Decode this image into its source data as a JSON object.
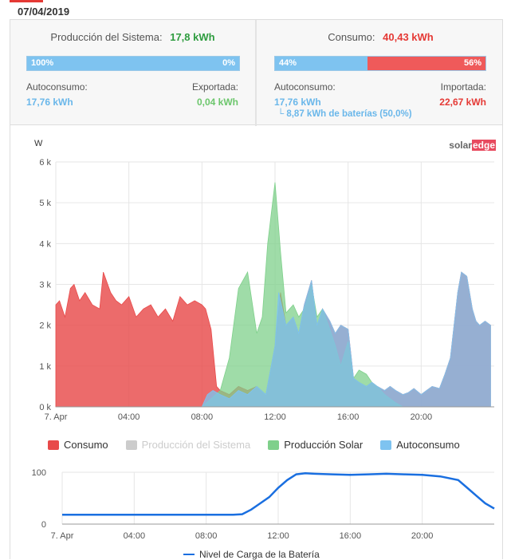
{
  "date": "07/04/2019",
  "production": {
    "label": "Producción del Sistema:",
    "value": "17,8 kWh",
    "bar_left_pct": "100%",
    "bar_right_pct": "0%",
    "self_label": "Autoconsumo:",
    "self_value": "17,76 kWh",
    "export_label": "Exportada:",
    "export_value": "0,04 kWh"
  },
  "consumption": {
    "label": "Consumo:",
    "value": "40,43 kWh",
    "bar_left_pct": "44%",
    "bar_right_pct": "56%",
    "self_label": "Autoconsumo:",
    "self_value": "17,76 kWh",
    "battery_note": "└ 8,87 kWh de baterías (50,0%)",
    "import_label": "Importada:",
    "import_value": "22,67 kWh"
  },
  "logo": {
    "part1": "solar",
    "part2": "edge"
  },
  "colors": {
    "consumo": "#e84a4a",
    "solar": "#7fd08b",
    "auto": "#7ec3f0",
    "battery": "#1a6fe0"
  },
  "chart_data": [
    {
      "type": "area",
      "ylabel": "W",
      "ylim": [
        0,
        6000
      ],
      "yticks": [
        "0 k",
        "1 k",
        "2 k",
        "3 k",
        "4 k",
        "5 k",
        "6 k"
      ],
      "xticks": [
        "7. Apr",
        "04:00",
        "08:00",
        "12:00",
        "16:00",
        "20:00"
      ],
      "xrange_hours": [
        0,
        24
      ],
      "legend": [
        {
          "name": "Consumo",
          "color": "#e84a4a"
        },
        {
          "name": "Producción del Sistema",
          "color": "#cccccc"
        },
        {
          "name": "Producción Solar",
          "color": "#7fd08b"
        },
        {
          "name": "Autoconsumo",
          "color": "#7ec3f0"
        }
      ],
      "series": [
        {
          "name": "Consumo",
          "x": [
            0,
            0.2,
            0.5,
            0.8,
            1,
            1.3,
            1.6,
            2,
            2.4,
            2.6,
            3,
            3.3,
            3.6,
            4,
            4.4,
            4.8,
            5.2,
            5.6,
            6,
            6.4,
            6.8,
            7.2,
            7.6,
            8,
            8.2,
            8.5,
            8.8,
            9,
            9.5,
            10,
            10.5,
            11,
            11.5,
            12,
            12.3,
            12.6,
            13,
            13.3,
            13.6,
            14,
            14.3,
            14.6,
            15,
            15.3,
            15.6,
            16,
            16.3,
            16.6,
            17,
            17.3,
            17.6,
            18,
            18.3,
            18.6,
            19,
            19.3,
            19.6,
            20,
            20.3,
            20.6,
            21,
            21.3,
            21.6,
            22,
            22.2,
            22.5,
            22.8,
            23,
            23.2,
            23.5,
            23.8
          ],
          "values": [
            2500,
            2600,
            2200,
            2900,
            3000,
            2600,
            2800,
            2500,
            2400,
            3300,
            2800,
            2600,
            2500,
            2700,
            2200,
            2400,
            2500,
            2200,
            2400,
            2100,
            2700,
            2500,
            2600,
            2500,
            2400,
            1900,
            500,
            400,
            300,
            500,
            400,
            500,
            300,
            1500,
            2800,
            2000,
            2200,
            1800,
            2500,
            3100,
            2000,
            2400,
            2100,
            1800,
            2000,
            1900,
            700,
            600,
            500,
            600,
            500,
            400,
            500,
            400,
            300,
            350,
            450,
            300,
            400,
            500,
            450,
            800,
            1200,
            2800,
            3300,
            3200,
            2400,
            2100,
            2000,
            2100,
            2000
          ]
        },
        {
          "name": "Producción Solar",
          "x": [
            8,
            8.5,
            9,
            9.5,
            10,
            10.5,
            11,
            11.3,
            11.6,
            12,
            12.3,
            12.6,
            13,
            13.3,
            13.6,
            14,
            14.3,
            14.6,
            15,
            15.3,
            15.6,
            16,
            16.3,
            16.6,
            17,
            17.3,
            17.6,
            18,
            18.3,
            18.6,
            19
          ],
          "values": [
            0,
            200,
            400,
            1200,
            2900,
            3300,
            1800,
            2200,
            4000,
            5500,
            3800,
            2300,
            2500,
            2200,
            2400,
            3000,
            2200,
            2400,
            1900,
            1500,
            1000,
            1600,
            700,
            900,
            800,
            600,
            500,
            300,
            200,
            100,
            0
          ]
        },
        {
          "name": "Autoconsumo",
          "x": [
            8,
            8.3,
            8.6,
            9,
            9.5,
            10,
            10.5,
            11,
            11.5,
            12,
            12.2,
            12.6,
            13,
            13.3,
            13.6,
            14,
            14.3,
            14.6,
            15,
            15.3,
            15.6,
            16,
            16.3,
            16.6,
            17,
            17.3,
            17.6,
            18,
            18.3,
            18.6,
            19,
            19.3,
            19.6,
            20,
            20.3,
            20.6,
            21,
            21.3,
            21.6,
            22,
            22.2,
            22.5,
            22.8,
            23,
            23.2,
            23.5,
            23.8
          ],
          "values": [
            0,
            300,
            400,
            300,
            200,
            400,
            300,
            500,
            300,
            1500,
            2800,
            2000,
            2200,
            1800,
            2500,
            3100,
            2000,
            2400,
            2100,
            1800,
            2000,
            1900,
            700,
            600,
            500,
            600,
            500,
            400,
            500,
            400,
            300,
            350,
            450,
            300,
            400,
            500,
            450,
            800,
            1200,
            2800,
            3300,
            3200,
            2400,
            2100,
            2000,
            2100,
            2000
          ]
        }
      ]
    },
    {
      "type": "line",
      "ylim": [
        0,
        100
      ],
      "yticks": [
        "0",
        "100"
      ],
      "xticks": [
        "7. Apr",
        "04:00",
        "08:00",
        "12:00",
        "16:00",
        "20:00"
      ],
      "series": [
        {
          "name": "Nivel de Carga de la Batería",
          "x": [
            0,
            2,
            4,
            6,
            8,
            9,
            9.5,
            10,
            10.5,
            11,
            11.5,
            12,
            12.5,
            13,
            13.5,
            14,
            15,
            16,
            17,
            18,
            19,
            20,
            21,
            22,
            22.5,
            23,
            23.5,
            24
          ],
          "values": [
            18,
            18,
            18,
            18,
            18,
            18,
            18,
            19,
            28,
            40,
            52,
            70,
            85,
            96,
            98,
            97,
            96,
            95,
            96,
            97,
            96,
            95,
            92,
            85,
            70,
            55,
            40,
            30
          ]
        }
      ]
    }
  ]
}
